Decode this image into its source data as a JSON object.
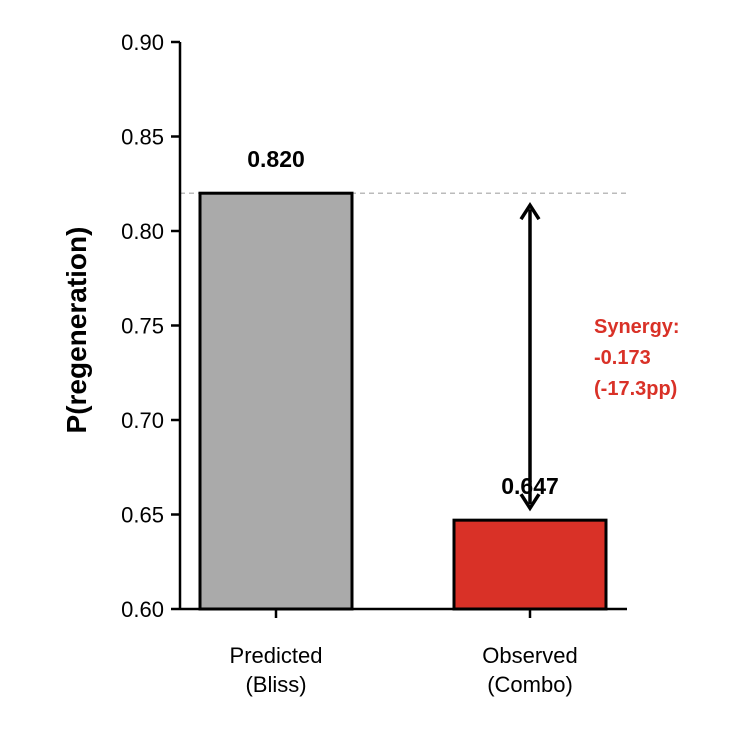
{
  "chart_data": {
    "type": "bar",
    "title": "",
    "xlabel": "",
    "ylabel": "P(regeneration)",
    "ylim": [
      0.6,
      0.9
    ],
    "yticks": [
      0.6,
      0.65,
      0.7,
      0.75,
      0.8,
      0.85,
      0.9
    ],
    "ytick_labels": [
      "0.60",
      "0.65",
      "0.70",
      "0.75",
      "0.80",
      "0.85",
      "0.90"
    ],
    "categories": [
      [
        "Predicted",
        "(Bliss)"
      ],
      [
        "Observed",
        "(Combo)"
      ]
    ],
    "values": [
      0.82,
      0.647
    ],
    "value_labels": [
      "0.820",
      "0.647"
    ],
    "colors": [
      "#aaaaaa",
      "#d93127"
    ],
    "reference_line": {
      "value": 0.82,
      "style": "dashed",
      "color": "#bbbbbb"
    },
    "annotation": {
      "lines": [
        "Synergy:",
        "-0.173",
        "(-17.3pp)"
      ],
      "color": "#d93127",
      "arrow_from": 0.647,
      "arrow_to": 0.82
    },
    "grid": false,
    "legend": "none"
  }
}
